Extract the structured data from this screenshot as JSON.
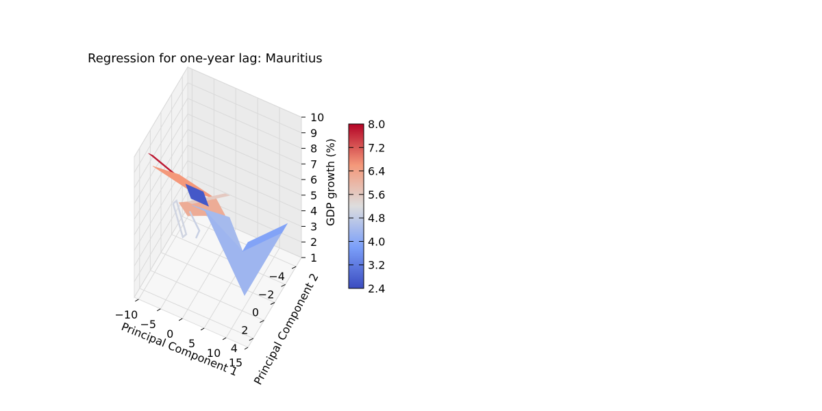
{
  "chart_data": {
    "type": "surface3d",
    "title": "Regression for one-year lag: Mauritius",
    "xlabel": "Principal Component 1",
    "ylabel": "Principal Component 2",
    "zlabel": "GDP growth (%)",
    "x_ticks": [
      "−10",
      "−5",
      "0",
      "5",
      "10",
      "15"
    ],
    "y_ticks": [
      "−4",
      "−2",
      "0",
      "2",
      "4"
    ],
    "z_ticks": [
      "1",
      "2",
      "3",
      "4",
      "5",
      "6",
      "7",
      "8",
      "9",
      "10"
    ],
    "xlim": [
      -11,
      15
    ],
    "ylim": [
      -5,
      5
    ],
    "zlim": [
      1,
      10
    ],
    "grid": true,
    "colormap": "coolwarm",
    "colorbar": {
      "min": 2.4,
      "max": 8.0,
      "ticks": [
        "2.4",
        "3.2",
        "4.0",
        "4.8",
        "5.6",
        "6.4",
        "7.2",
        "8.0"
      ]
    },
    "surface_facets": [
      {
        "pts": [
          [
            -9,
            -3,
            3.9
          ],
          [
            -8,
            -3,
            3.9
          ],
          [
            -8,
            4,
            9.9
          ],
          [
            -9,
            4,
            9.9
          ]
        ],
        "value": 7.8
      },
      {
        "pts": [
          [
            -8,
            -3,
            3.6
          ],
          [
            -2,
            -3,
            3.8
          ],
          [
            -2,
            4,
            9.4
          ],
          [
            -8,
            4,
            9.2
          ]
        ],
        "value": 6.6
      },
      {
        "pts": [
          [
            -2,
            -3,
            3.8
          ],
          [
            0,
            -3,
            3.0
          ],
          [
            0,
            4,
            7.0
          ],
          [
            -2,
            4,
            7.6
          ]
        ],
        "value": 6.2
      },
      {
        "pts": [
          [
            -9,
            -3,
            3.9
          ],
          [
            -5,
            -3,
            3.9
          ],
          [
            -5,
            -4,
            2.4
          ],
          [
            -9,
            -4,
            2.4
          ]
        ],
        "value": 2.6
      },
      {
        "pts": [
          [
            0,
            -3,
            4.4
          ],
          [
            1,
            -3,
            4.4
          ],
          [
            1,
            4,
            7.9
          ],
          [
            0,
            4,
            7.9
          ]
        ],
        "value": 5.6
      },
      {
        "pts": [
          [
            1,
            -3,
            3.0
          ],
          [
            4,
            -3,
            1.2
          ],
          [
            4,
            4,
            7.8
          ],
          [
            1,
            4,
            7.8
          ]
        ],
        "value": 4.4
      },
      {
        "pts": [
          [
            4,
            -3,
            1.2
          ],
          [
            13,
            -3,
            3.5
          ],
          [
            13,
            4,
            3.5
          ],
          [
            4,
            4,
            7.8
          ]
        ],
        "value": 4.3
      },
      {
        "pts": [
          [
            4,
            -4,
            1.2
          ],
          [
            13,
            -4,
            3.5
          ],
          [
            13,
            -3,
            3.5
          ],
          [
            4,
            -3,
            1.2
          ]
        ],
        "value": 3.9
      }
    ],
    "surface_lines": [
      {
        "pts": [
          [
            -7,
            1,
            5.2
          ],
          [
            -6,
            0,
            2.6
          ],
          [
            -4,
            1,
            3.6
          ],
          [
            -5,
            2,
            6.2
          ],
          [
            -7,
            1,
            5.2
          ]
        ],
        "value": 5.0
      },
      {
        "pts": [
          [
            -3,
            0,
            2.9
          ],
          [
            -1,
            1,
            4.2
          ],
          [
            -2,
            2,
            5.9
          ]
        ],
        "value": 4.9
      }
    ]
  }
}
